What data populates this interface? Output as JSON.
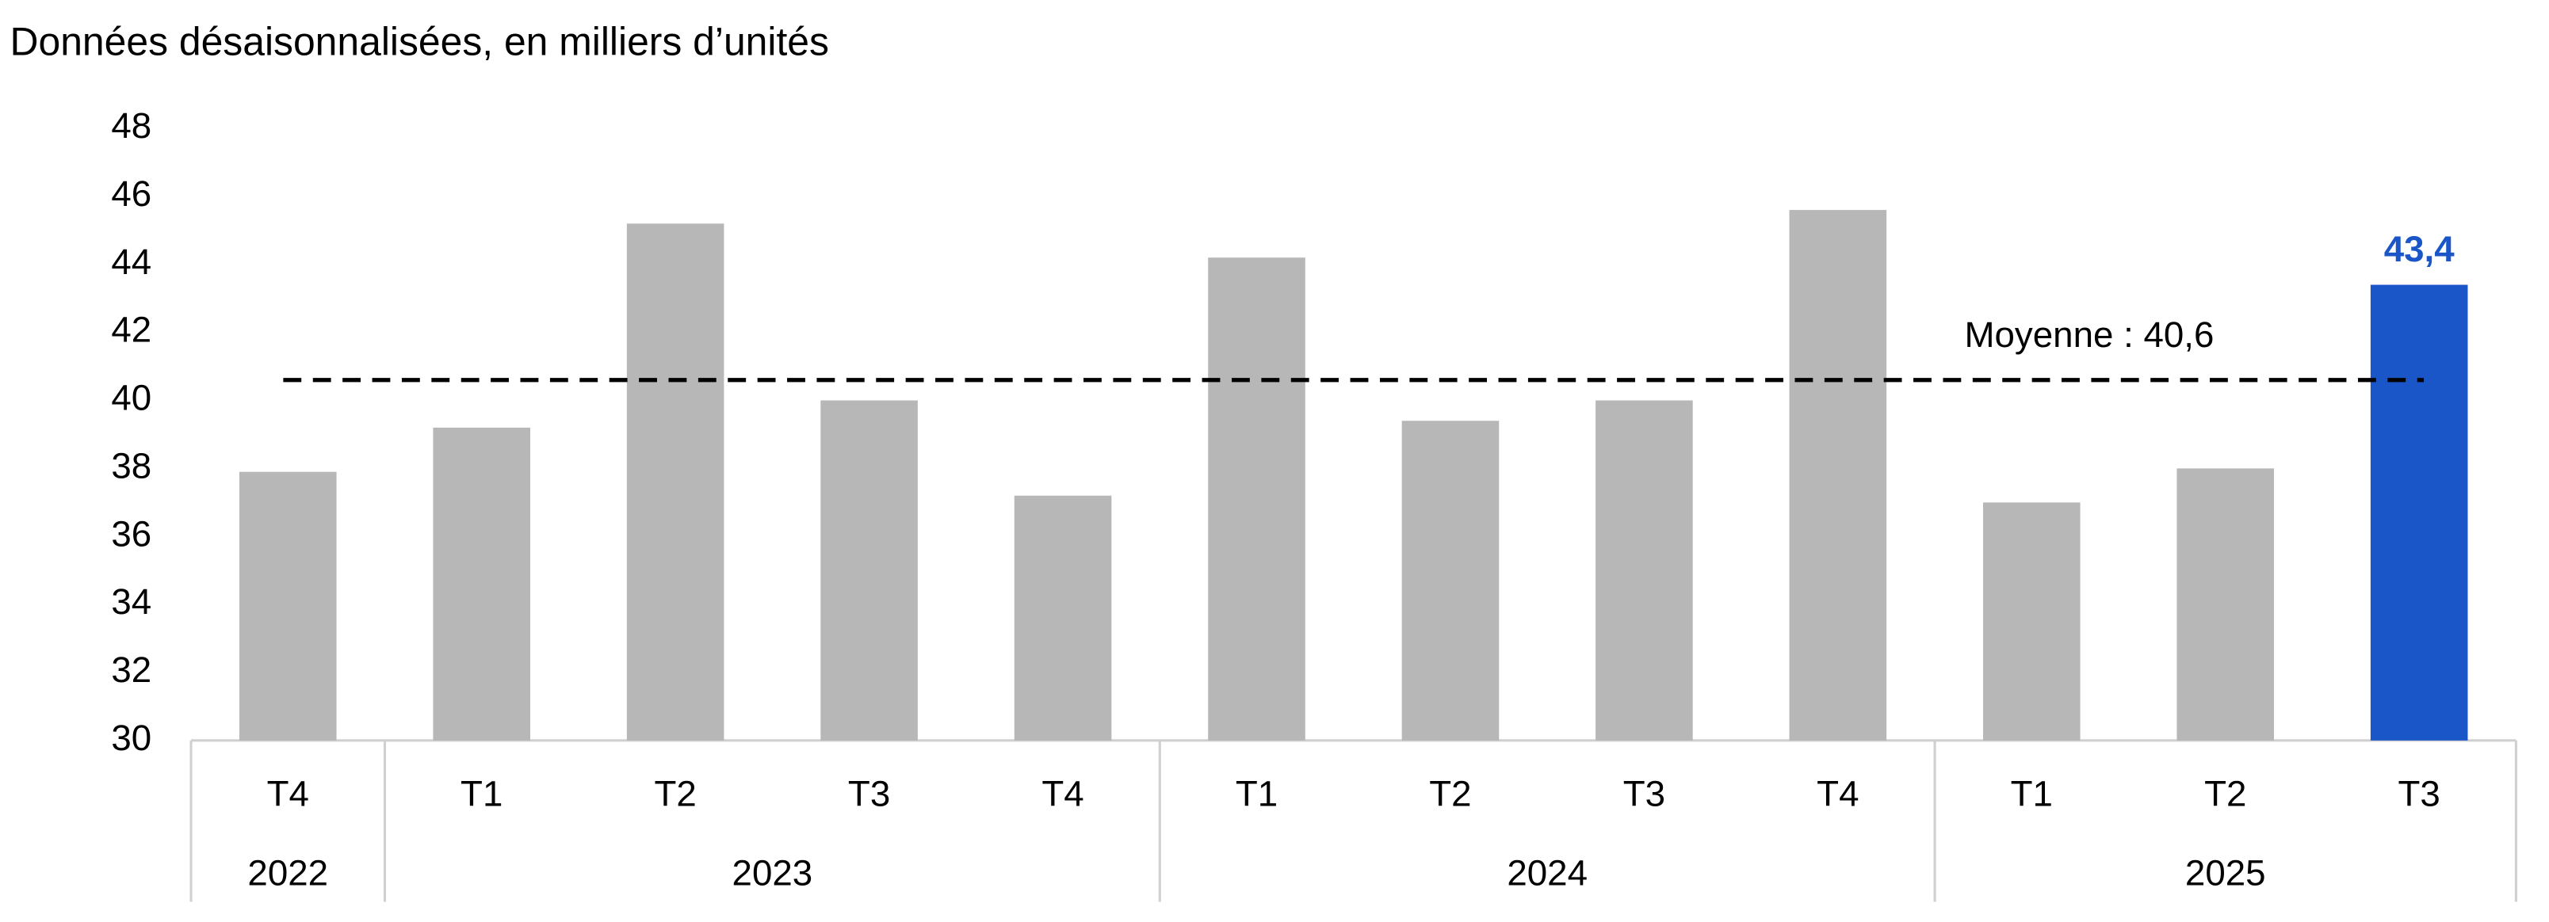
{
  "chart_data": {
    "type": "bar",
    "title": "Données désaisonnalisées, en milliers d’unités",
    "groups": [
      {
        "name": "2022",
        "categories": [
          "T4"
        ]
      },
      {
        "name": "2023",
        "categories": [
          "T1",
          "T2",
          "T3",
          "T4"
        ]
      },
      {
        "name": "2024",
        "categories": [
          "T1",
          "T2",
          "T3",
          "T4"
        ]
      },
      {
        "name": "2025",
        "categories": [
          "T1",
          "T2",
          "T3"
        ]
      }
    ],
    "values": [
      37.9,
      39.2,
      45.2,
      40.0,
      37.2,
      44.2,
      39.4,
      40.0,
      45.6,
      37.0,
      38.0,
      43.4
    ],
    "value_labels": [
      null,
      null,
      null,
      null,
      null,
      null,
      null,
      null,
      null,
      null,
      null,
      "43,4"
    ],
    "colors": [
      "#b7b7b7",
      "#b7b7b7",
      "#b7b7b7",
      "#b7b7b7",
      "#b7b7b7",
      "#b7b7b7",
      "#b7b7b7",
      "#b7b7b7",
      "#b7b7b7",
      "#b7b7b7",
      "#b7b7b7",
      "#1a56c8"
    ],
    "mean": {
      "value": 40.6,
      "label": "Moyenne : 40,6"
    },
    "ylim": [
      30,
      48
    ],
    "yticks": [
      30,
      32,
      34,
      36,
      38,
      40,
      42,
      44,
      46,
      48
    ],
    "grid": false
  }
}
